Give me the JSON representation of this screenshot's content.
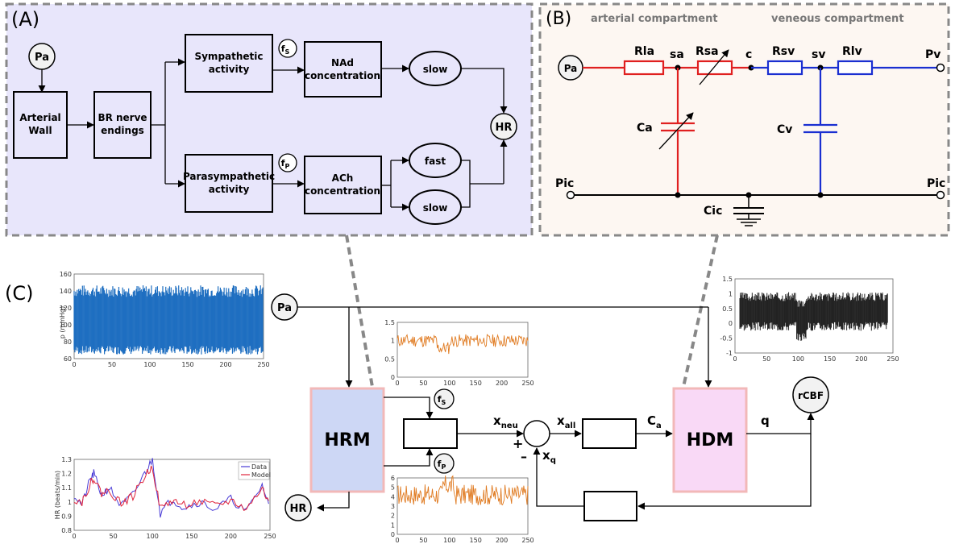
{
  "panel_a": {
    "letter": "(A)",
    "pa": "Pa",
    "arterial_wall": [
      "Arterial",
      "Wall"
    ],
    "br_nerve": [
      "BR nerve",
      "endings"
    ],
    "sympathetic": [
      "Sympathetic",
      "activity"
    ],
    "parasympathetic": [
      "Parasympathetic",
      "activity"
    ],
    "fs": "f",
    "fs_sub": "S",
    "fp": "f",
    "fp_sub": "P",
    "nad": [
      "NAd",
      "concentration"
    ],
    "ach": [
      "ACh",
      "concentration"
    ],
    "slow_top": "slow",
    "fast": "fast",
    "slow_bottom": "slow",
    "hr": "HR"
  },
  "panel_b": {
    "letter": "(B)",
    "arterial_compartment": "arterial compartment",
    "veneous_compartment": "veneous compartment",
    "pa": "Pa",
    "rla": "Rla",
    "sa": "sa",
    "rsa": "Rsa",
    "c": "c",
    "rsv": "Rsv",
    "sv": "sv",
    "rlv": "Rlv",
    "pv": "Pv",
    "ca": "Ca",
    "cv": "Cv",
    "pic_left": "Pic",
    "pic_right": "Pic",
    "cic": "Cic"
  },
  "panel_c": {
    "letter": "(C)",
    "pa": "Pa",
    "hrm": "HRM",
    "hdm": "HDM",
    "hr": "HR",
    "rcbf": "rCBF",
    "fs": "f",
    "fs_sub": "S",
    "fp": "f",
    "fp_sub": "P",
    "x_neu": "x",
    "x_neu_sub": "neu",
    "x_all": "x",
    "x_all_sub": "all",
    "c_a": "C",
    "c_a_sub": "a",
    "x_q": "x",
    "x_q_sub": "q",
    "q": "q",
    "plus": "+",
    "minus": "–"
  },
  "colors": {
    "panel_a_bg": "#e8e6fb",
    "panel_b_bg": "#fdf7f2",
    "hrm_fill": "#cdd7f5",
    "hrm_border": "#f2b8b8",
    "hdm_fill": "#f9d9f6",
    "hdm_border": "#f2b8b8",
    "arterial_red": "#e02020",
    "venous_blue": "#1a2fd1",
    "bp_blue": "#1f6fc1",
    "fs_orange": "#e07b22",
    "hr_data": "#4a3cd6",
    "hr_model": "#e0243c"
  },
  "chart_data": [
    {
      "type": "area",
      "ylabel": "p (mmHg)",
      "xlim": [
        0,
        250
      ],
      "ylim": [
        60,
        160
      ],
      "x_ticks": [
        "0",
        "50",
        "100",
        "150",
        "200",
        "250"
      ],
      "y_ticks": [
        "60",
        "80",
        "100",
        "120",
        "140",
        "160"
      ],
      "series": [
        {
          "band_top_approx": 140,
          "band_bottom_approx": 70
        }
      ]
    },
    {
      "type": "line",
      "xlim": [
        0,
        250
      ],
      "ylim": [
        0,
        1.5
      ],
      "x_ticks": [
        "0",
        "50",
        "100",
        "150",
        "200",
        "250"
      ],
      "y_ticks": [
        "0",
        "0.5",
        "1",
        "1.5"
      ],
      "series": [
        {
          "mean_approx": 1.0
        }
      ]
    },
    {
      "type": "area",
      "xlim": [
        0,
        250
      ],
      "ylim": [
        -1,
        1.5
      ],
      "x_ticks": [
        "0",
        "50",
        "100",
        "150",
        "200",
        "250"
      ],
      "y_ticks": [
        "-1",
        "-0.5",
        "0",
        "0.5",
        "1",
        "1.5"
      ],
      "series": [
        {
          "band_top_approx": 0.9,
          "band_bottom_approx": -0.1
        }
      ]
    },
    {
      "type": "line",
      "ylabel": "HR (beats/min)",
      "xlim": [
        0,
        250
      ],
      "ylim": [
        0.8,
        1.3
      ],
      "x_ticks": [
        "0",
        "50",
        "100",
        "150",
        "200",
        "250"
      ],
      "y_ticks": [
        "0.8",
        "0.9",
        "1",
        "1.1",
        "1.2",
        "1.3"
      ],
      "series": [
        {
          "name": "Data",
          "x": [
            0,
            10,
            20,
            25,
            35,
            45,
            60,
            75,
            90,
            100,
            110,
            125,
            140,
            160,
            180,
            200,
            220,
            240,
            250
          ],
          "y": [
            1.05,
            0.98,
            1.15,
            1.2,
            1.05,
            1.1,
            0.97,
            1.05,
            1.2,
            1.3,
            0.92,
            1.02,
            0.96,
            1.0,
            0.95,
            1.02,
            0.93,
            1.12,
            0.95
          ]
        },
        {
          "name": "Model",
          "x": [
            0,
            10,
            20,
            25,
            35,
            45,
            60,
            75,
            90,
            100,
            110,
            125,
            140,
            160,
            180,
            200,
            220,
            240,
            250
          ],
          "y": [
            1.02,
            1.0,
            1.12,
            1.17,
            1.06,
            1.08,
            0.99,
            1.04,
            1.18,
            1.25,
            0.95,
            1.01,
            0.98,
            1.0,
            0.97,
            1.01,
            0.95,
            1.1,
            0.97
          ]
        }
      ]
    },
    {
      "type": "line",
      "xlim": [
        0,
        250
      ],
      "ylim": [
        0,
        6
      ],
      "x_ticks": [
        "0",
        "50",
        "100",
        "150",
        "200",
        "250"
      ],
      "y_ticks": [
        "0",
        "1",
        "2",
        "3",
        "4",
        "5",
        "6"
      ],
      "series": [
        {
          "mean_approx": 4.2
        }
      ]
    }
  ]
}
